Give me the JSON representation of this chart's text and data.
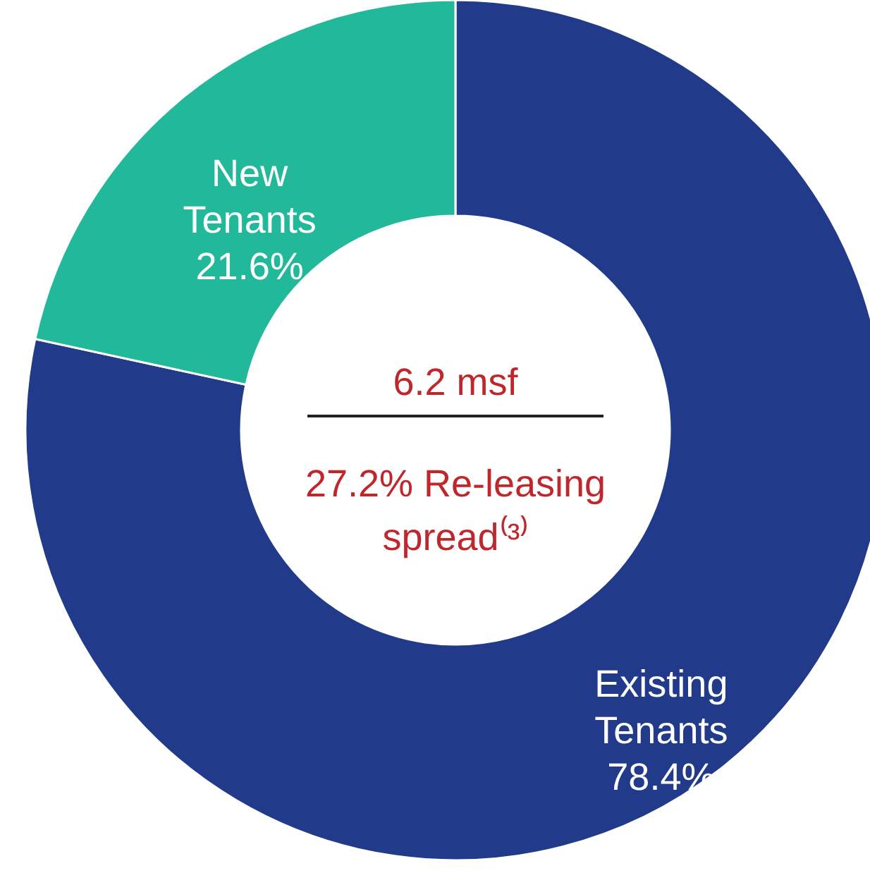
{
  "chart_data": {
    "type": "donut",
    "categories": [
      "Existing Tenants",
      "New Tenants"
    ],
    "values": [
      78.4,
      21.6
    ],
    "colors": [
      "#213a8a",
      "#22b89a"
    ],
    "value_labels": [
      "78.4%",
      "21.6%"
    ],
    "annotations": [
      "6.2 msf",
      "27.2% Re-leasing spread⁽³⁾"
    ]
  }
}
